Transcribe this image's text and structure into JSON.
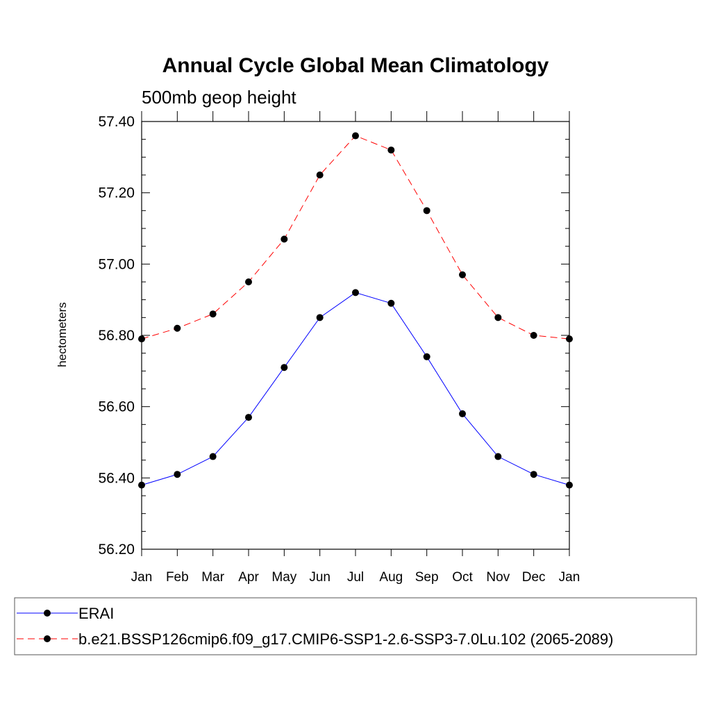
{
  "chart_data": {
    "type": "line",
    "title": "Annual Cycle Global Mean Climatology",
    "subtitle": "500mb geop height",
    "xlabel": "",
    "ylabel": "hectometers",
    "categories": [
      "Jan",
      "Feb",
      "Mar",
      "Apr",
      "May",
      "Jun",
      "Jul",
      "Aug",
      "Sep",
      "Oct",
      "Nov",
      "Dec",
      "Jan"
    ],
    "ylim": [
      56.2,
      57.4
    ],
    "yticks": [
      "56.20",
      "56.40",
      "56.60",
      "56.80",
      "57.00",
      "57.20",
      "57.40"
    ],
    "grid": false,
    "legend_position": "bottom",
    "series": [
      {
        "name": "ERAI",
        "color": "#0000ff",
        "dash": "solid",
        "marker": "filled-circle",
        "values": [
          56.38,
          56.41,
          56.46,
          56.57,
          56.71,
          56.85,
          56.92,
          56.89,
          56.74,
          56.58,
          56.46,
          56.41,
          56.38
        ]
      },
      {
        "name": "b.e21.BSSP126cmip6.f09_g17.CMIP6-SSP1-2.6-SSP3-7.0Lu.102 (2065-2089)",
        "color": "#ff0000",
        "dash": "dashed",
        "marker": "filled-circle",
        "values": [
          56.79,
          56.82,
          56.86,
          56.95,
          57.07,
          57.25,
          57.36,
          57.32,
          57.15,
          56.97,
          56.85,
          56.8,
          56.79
        ]
      }
    ]
  }
}
